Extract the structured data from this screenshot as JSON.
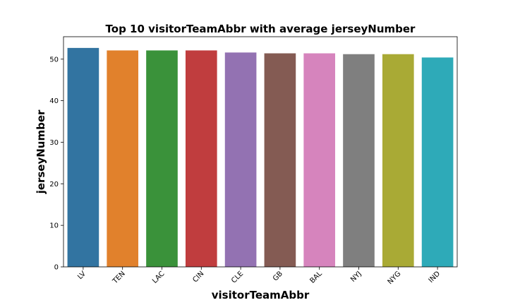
{
  "chart_data": {
    "type": "bar",
    "title": "Top 10 visitorTeamAbbr with average jerseyNumber",
    "xlabel": "visitorTeamAbbr",
    "ylabel": "jerseyNumber",
    "categories": [
      "LV",
      "TEN",
      "LAC",
      "CIN",
      "CLE",
      "GB",
      "BAL",
      "NYJ",
      "NYG",
      "IND"
    ],
    "values": [
      52.7,
      52.1,
      52.1,
      52.1,
      51.6,
      51.4,
      51.4,
      51.2,
      51.2,
      50.4
    ],
    "colors": [
      "#3274a1",
      "#e1812c",
      "#3a923a",
      "#c03d3e",
      "#9372b2",
      "#845b53",
      "#d684bd",
      "#7f7f7f",
      "#a9aa35",
      "#2eaab8"
    ],
    "yticks": [
      0,
      10,
      20,
      30,
      40,
      50
    ],
    "ylim": [
      0,
      55.4
    ],
    "grid": false,
    "legend": "none"
  }
}
